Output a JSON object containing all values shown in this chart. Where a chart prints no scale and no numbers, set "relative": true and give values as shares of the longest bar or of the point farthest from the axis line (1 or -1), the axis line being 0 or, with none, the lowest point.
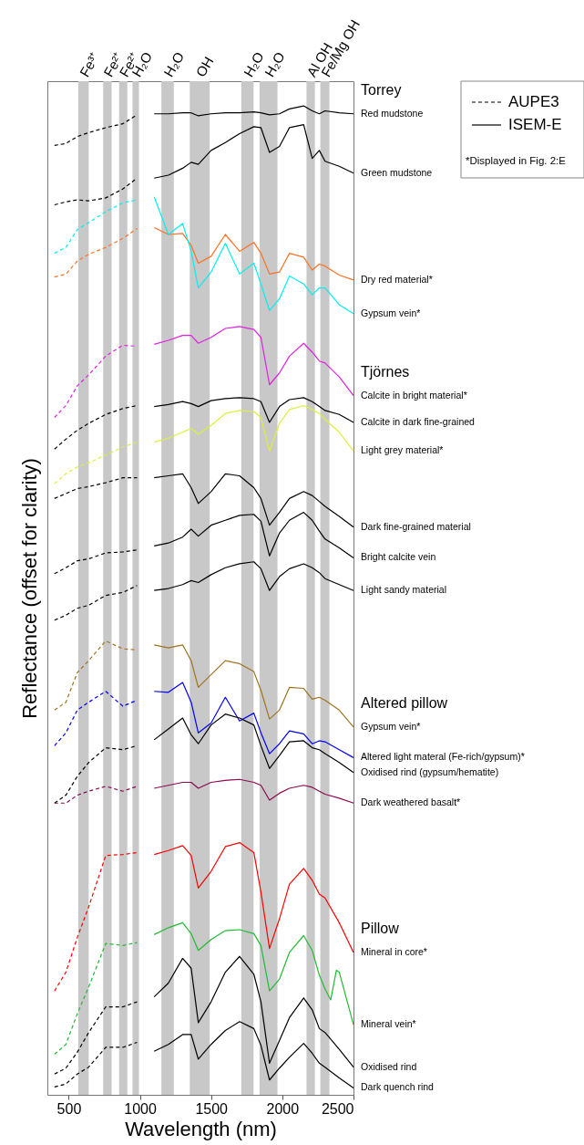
{
  "chart_data": {
    "type": "line",
    "relative": true,
    "xlabel": "Wavelength (nm)",
    "ylabel": "Reflectance (offset for clarity)",
    "xlim": [
      350,
      2500
    ],
    "xticks": [
      500,
      {
        "value": 1000,
        "label": "1000"
      },
      {
        "value": 1500,
        "label": "1500"
      },
      {
        "value": 2000,
        "label": "2000"
      },
      {
        "value": 2500,
        "label": "2500"
      }
    ],
    "legend": "top right",
    "annotations": [
      "AUPE3",
      "ISEM-E",
      "*Displayed in Fig. 2:E",
      "Torrey",
      "Tjörnes",
      "Altered pillow",
      "Pillow"
    ],
    "bands": [
      {
        "axis": "x",
        "from": 567,
        "to": 640,
        "label": "Fe³⁺",
        "color": "#c8c8c8"
      },
      {
        "axis": "x",
        "from": 742,
        "to": 801,
        "label": "Fe²⁺",
        "color": "#c8c8c8"
      },
      {
        "axis": "x",
        "from": 854,
        "to": 911,
        "label": "Fe²⁺",
        "color": "#c8c8c8"
      },
      {
        "axis": "x",
        "from": 948,
        "to": 993,
        "label": "H₂O",
        "color": "#c8c8c8"
      },
      {
        "axis": "x",
        "from": 1151,
        "to": 1238,
        "label": "H₂O",
        "color": "#c8c8c8"
      },
      {
        "axis": "x",
        "from": 1350,
        "to": 1490,
        "label": "OH",
        "color": "#c8c8c8"
      },
      {
        "axis": "x",
        "from": 1712,
        "to": 1798,
        "label": "H₂O",
        "color": "#c8c8c8"
      },
      {
        "axis": "x",
        "from": 1840,
        "to": 1966,
        "label": "H₂O",
        "color": "#c8c8c8"
      },
      {
        "axis": "x",
        "from": 2170,
        "to": 2229,
        "label": "Al OH",
        "color": "#c8c8c8"
      },
      {
        "axis": "x",
        "from": 2267,
        "to": 2331,
        "label": "Fe/Mg OH",
        "color": "#c8c8c8"
      }
    ],
    "x": [
      1100,
      1200,
      1300,
      1360,
      1410,
      1500,
      1600,
      1700,
      1800,
      1850,
      1910,
      1980,
      2050,
      2150,
      2210,
      2260,
      2300,
      2400,
      2500
    ],
    "series": [
      {
        "name": "Red mudstone",
        "color": "#000000",
        "line_style": "solid",
        "values": [
          0.992,
          0.992,
          0.993,
          0.993,
          0.99,
          0.992,
          0.993,
          0.993,
          0.994,
          0.993,
          0.991,
          0.992,
          0.997,
          1.0,
          0.995,
          0.992,
          0.995,
          0.993,
          0.992
        ]
      },
      {
        "color": "#000000",
        "line_style": "dashed",
        "x": [
          400,
          480,
          560,
          640,
          760,
          880,
          980
        ],
        "values": [
          0.96,
          0.962,
          0.969,
          0.973,
          0.978,
          0.982,
          0.991
        ]
      },
      {
        "name": "Green mudstone",
        "color": "#000000",
        "line_style": "solid",
        "values": [
          0.927,
          0.93,
          0.937,
          0.943,
          0.941,
          0.955,
          0.963,
          0.972,
          0.979,
          0.978,
          0.953,
          0.959,
          0.978,
          0.981,
          0.947,
          0.955,
          0.944,
          0.939,
          0.932
        ]
      },
      {
        "color": "#000000",
        "line_style": "dashed",
        "x": [
          400,
          480,
          560,
          640,
          760,
          880,
          980
        ],
        "values": [
          0.9,
          0.903,
          0.905,
          0.904,
          0.907,
          0.916,
          0.927
        ]
      },
      {
        "name": "Dry red material*",
        "color": "#ff7020",
        "line_style": "solid",
        "values": [
          0.877,
          0.87,
          0.871,
          0.859,
          0.841,
          0.848,
          0.87,
          0.853,
          0.862,
          0.851,
          0.83,
          0.832,
          0.851,
          0.847,
          0.834,
          0.84,
          0.838,
          0.829,
          0.824
        ]
      },
      {
        "color": "#ff7020",
        "line_style": "dashed",
        "x": [
          400,
          480,
          560,
          640,
          760,
          880,
          980
        ],
        "values": [
          0.827,
          0.83,
          0.843,
          0.85,
          0.857,
          0.866,
          0.876
        ]
      },
      {
        "name": "Gypsum vein*",
        "color": "#00f0f0",
        "line_style": "solid",
        "values": [
          0.908,
          0.87,
          0.881,
          0.853,
          0.816,
          0.832,
          0.861,
          0.83,
          0.841,
          0.82,
          0.793,
          0.805,
          0.828,
          0.82,
          0.809,
          0.816,
          0.816,
          0.799,
          0.79
        ]
      },
      {
        "color": "#00f0f0",
        "line_style": "dashed",
        "x": [
          400,
          480,
          560,
          640,
          760,
          880,
          980
        ],
        "values": [
          0.851,
          0.857,
          0.875,
          0.882,
          0.893,
          0.902,
          0.905
        ]
      },
      {
        "name": "Calcite in bright material*",
        "color": "#e020e0",
        "line_style": "solid",
        "values": [
          0.759,
          0.763,
          0.768,
          0.768,
          0.76,
          0.766,
          0.775,
          0.777,
          0.774,
          0.766,
          0.718,
          0.73,
          0.747,
          0.76,
          0.751,
          0.742,
          0.74,
          0.726,
          0.707
        ]
      },
      {
        "color": "#e020e0",
        "line_style": "dashed",
        "x": [
          400,
          480,
          560,
          640,
          760,
          880,
          980
        ],
        "values": [
          0.685,
          0.697,
          0.717,
          0.728,
          0.747,
          0.758,
          0.757
        ]
      },
      {
        "name": "Calcite in dark fine-grained",
        "color": "#000000",
        "line_style": "solid",
        "values": [
          0.696,
          0.698,
          0.701,
          0.699,
          0.696,
          0.702,
          0.704,
          0.705,
          0.704,
          0.701,
          0.68,
          0.696,
          0.703,
          0.705,
          0.701,
          0.696,
          0.692,
          0.688,
          0.68
        ]
      },
      {
        "color": "#000000",
        "line_style": "dashed",
        "x": [
          400,
          480,
          560,
          640,
          760,
          880,
          980
        ],
        "values": [
          0.653,
          0.663,
          0.672,
          0.679,
          0.688,
          0.694,
          0.697
        ]
      },
      {
        "name": "Light grey material*",
        "color": "#dcf03c",
        "line_style": "solid",
        "values": [
          0.66,
          0.664,
          0.67,
          0.674,
          0.668,
          0.677,
          0.689,
          0.692,
          0.691,
          0.685,
          0.651,
          0.679,
          0.693,
          0.697,
          0.693,
          0.689,
          0.683,
          0.67,
          0.651
        ]
      },
      {
        "color": "#dcf03c",
        "line_style": "dashed",
        "x": [
          400,
          480,
          560,
          640,
          760,
          880,
          980
        ],
        "values": [
          0.618,
          0.628,
          0.635,
          0.639,
          0.647,
          0.655,
          0.66
        ]
      },
      {
        "name": "Dark fine-grained material",
        "color": "#000000",
        "line_style": "solid",
        "values": [
          0.624,
          0.626,
          0.628,
          0.614,
          0.598,
          0.61,
          0.628,
          0.626,
          0.614,
          0.603,
          0.576,
          0.589,
          0.603,
          0.61,
          0.606,
          0.6,
          0.595,
          0.585,
          0.574
        ]
      },
      {
        "color": "#000000",
        "line_style": "dashed",
        "x": [
          400,
          480,
          560,
          640,
          760,
          880,
          980
        ],
        "values": [
          0.603,
          0.608,
          0.613,
          0.615,
          0.619,
          0.624,
          0.624
        ]
      },
      {
        "name": "Bright calcite vein",
        "color": "#000000",
        "line_style": "solid",
        "values": [
          0.555,
          0.558,
          0.564,
          0.572,
          0.565,
          0.576,
          0.581,
          0.586,
          0.587,
          0.58,
          0.545,
          0.568,
          0.581,
          0.589,
          0.581,
          0.57,
          0.562,
          0.553,
          0.543
        ]
      },
      {
        "color": "#000000",
        "line_style": "dashed",
        "x": [
          400,
          480,
          560,
          640,
          760,
          880,
          980
        ],
        "values": [
          0.527,
          0.533,
          0.54,
          0.542,
          0.548,
          0.549,
          0.551
        ]
      },
      {
        "name": "Light sandy material",
        "color": "#000000",
        "line_style": "solid",
        "values": [
          0.51,
          0.512,
          0.516,
          0.52,
          0.518,
          0.526,
          0.533,
          0.537,
          0.539,
          0.532,
          0.51,
          0.524,
          0.532,
          0.537,
          0.533,
          0.528,
          0.522,
          0.516,
          0.51
        ]
      },
      {
        "color": "#000000",
        "line_style": "dashed",
        "x": [
          400,
          480,
          560,
          640,
          760,
          880,
          980
        ],
        "values": [
          0.48,
          0.485,
          0.492,
          0.495,
          0.505,
          0.508,
          0.515
        ]
      },
      {
        "name": "Gypsum vein*",
        "color": "#a0721e",
        "line_style": "solid",
        "values": [
          0.455,
          0.452,
          0.455,
          0.439,
          0.412,
          0.425,
          0.439,
          0.436,
          0.428,
          0.409,
          0.38,
          0.389,
          0.412,
          0.411,
          0.4,
          0.402,
          0.399,
          0.389,
          0.372
        ]
      },
      {
        "color": "#a0721e",
        "line_style": "dashed",
        "x": [
          400,
          480,
          560,
          640,
          760,
          880,
          980
        ],
        "values": [
          0.389,
          0.397,
          0.427,
          0.439,
          0.459,
          0.451,
          0.45
        ]
      },
      {
        "name": "Altered light materal (Fe-rich/gypsum)*",
        "color": "#0000ff",
        "line_style": "solid",
        "values": [
          0.408,
          0.407,
          0.417,
          0.397,
          0.366,
          0.376,
          0.402,
          0.378,
          0.386,
          0.366,
          0.345,
          0.355,
          0.368,
          0.365,
          0.355,
          0.358,
          0.357,
          0.349,
          0.341
        ]
      },
      {
        "color": "#0000ff",
        "line_style": "dashed",
        "x": [
          400,
          480,
          560,
          640,
          760,
          880,
          980
        ],
        "values": [
          0.353,
          0.366,
          0.389,
          0.397,
          0.408,
          0.393,
          0.399
        ]
      },
      {
        "name": "Oxidised rind (gypsum/hematite)",
        "color": "#000000",
        "line_style": "solid",
        "values": [
          0.359,
          0.37,
          0.381,
          0.364,
          0.355,
          0.374,
          0.385,
          0.381,
          0.374,
          0.353,
          0.33,
          0.343,
          0.357,
          0.358,
          0.351,
          0.349,
          0.345,
          0.336,
          0.326
        ]
      },
      {
        "color": "#000000",
        "line_style": "dashed",
        "x": [
          400,
          480,
          560,
          640,
          760,
          880,
          980
        ],
        "values": [
          0.295,
          0.303,
          0.322,
          0.336,
          0.351,
          0.349,
          0.353
        ]
      },
      {
        "name": "Dark weathered basalt*",
        "color": "#8b0a50",
        "line_style": "solid",
        "values": [
          0.31,
          0.313,
          0.316,
          0.316,
          0.31,
          0.316,
          0.318,
          0.319,
          0.316,
          0.313,
          0.298,
          0.305,
          0.31,
          0.313,
          0.311,
          0.307,
          0.304,
          0.3,
          0.295
        ]
      },
      {
        "color": "#8b0a50",
        "line_style": "dashed",
        "x": [
          400,
          480,
          560,
          640,
          760,
          880,
          980
        ],
        "values": [
          0.295,
          0.295,
          0.303,
          0.307,
          0.312,
          0.307,
          0.312
        ]
      },
      {
        "name": "Mineral in core*",
        "color": "#ff0000",
        "line_style": "solid",
        "values": [
          0.243,
          0.247,
          0.252,
          0.242,
          0.209,
          0.226,
          0.251,
          0.255,
          0.245,
          0.205,
          0.148,
          0.178,
          0.213,
          0.229,
          0.217,
          0.203,
          0.199,
          0.174,
          0.144
        ]
      },
      {
        "color": "#ff0000",
        "line_style": "dashed",
        "x": [
          400,
          480,
          560,
          640,
          760,
          880,
          980
        ],
        "values": [
          0.105,
          0.124,
          0.159,
          0.19,
          0.242,
          0.243,
          0.245
        ]
      },
      {
        "name": "Mineral vein*",
        "color": "#22bb33",
        "line_style": "solid",
        "x": [
          1100,
          1200,
          1300,
          1360,
          1410,
          1500,
          1600,
          1700,
          1800,
          1850,
          1910,
          1980,
          2050,
          2150,
          2210,
          2260,
          2300,
          2340,
          2380,
          2400,
          2500
        ],
        "values": [
          0.162,
          0.169,
          0.174,
          0.163,
          0.146,
          0.157,
          0.166,
          0.167,
          0.163,
          0.151,
          0.105,
          0.117,
          0.144,
          0.161,
          0.146,
          0.121,
          0.107,
          0.096,
          0.126,
          0.124,
          0.071
        ]
      },
      {
        "color": "#22bb33",
        "line_style": "dashed",
        "x": [
          400,
          480,
          560,
          640,
          760,
          880,
          980
        ],
        "values": [
          0.041,
          0.051,
          0.082,
          0.109,
          0.153,
          0.151,
          0.154
        ]
      },
      {
        "name": "Oxidised rind",
        "color": "#000000",
        "line_style": "solid",
        "values": [
          0.099,
          0.113,
          0.138,
          0.128,
          0.073,
          0.094,
          0.124,
          0.14,
          0.122,
          0.094,
          0.032,
          0.055,
          0.078,
          0.098,
          0.086,
          0.067,
          0.063,
          0.046,
          0.028
        ]
      },
      {
        "color": "#000000",
        "line_style": "dashed",
        "x": [
          400,
          480,
          560,
          640,
          760,
          880,
          980
        ],
        "values": [
          0.021,
          0.027,
          0.043,
          0.063,
          0.089,
          0.089,
          0.094
        ]
      },
      {
        "name": "Dark quench rind",
        "color": "#000000",
        "line_style": "solid",
        "values": [
          0.044,
          0.051,
          0.061,
          0.061,
          0.036,
          0.051,
          0.065,
          0.074,
          0.067,
          0.05,
          0.015,
          0.027,
          0.038,
          0.052,
          0.042,
          0.032,
          0.028,
          0.017,
          0.007
        ]
      },
      {
        "color": "#000000",
        "line_style": "dashed",
        "x": [
          400,
          480,
          560,
          640,
          760,
          880,
          980
        ],
        "values": [
          0.008,
          0.011,
          0.021,
          0.028,
          0.048,
          0.048,
          0.053
        ]
      }
    ]
  }
}
